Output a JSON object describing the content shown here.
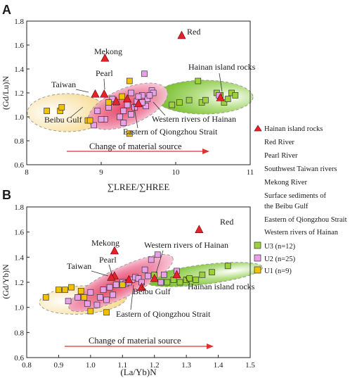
{
  "legend": {
    "items": [
      "Hainan island rocks",
      "Red River",
      "Pearl River",
      "Southwest Taiwan rivers",
      "Mekong River",
      "Surface sediments of",
      "the Beibu Gulf",
      "Eastern of Qiongzhou Strait",
      "Western rivers of Hainan",
      "U3 (n=12)",
      "U2 (n=25)",
      "U1 (n=9)"
    ]
  },
  "colors": {
    "u1": "#f2c100",
    "u2": "#e8a0e8",
    "u3": "#9bd13c",
    "triangle": "#e8202a",
    "arrow": "#e03030"
  },
  "chart_data": [
    {
      "type": "scatter",
      "panel": "A",
      "xlabel": "∑LREE/∑HREE",
      "ylabel": "(Gd/Lu)N",
      "xlim": [
        8,
        11
      ],
      "ylim": [
        0.6,
        1.8
      ],
      "xticks": [
        "8",
        "9",
        "10",
        "11"
      ],
      "yticks": [
        "0.6",
        "0.8",
        "1.0",
        "1.2",
        "1.4",
        "1.6",
        "1.8"
      ],
      "arrow_label": "Change of material source",
      "point_labels": [
        "Red",
        "Mekong",
        "Pearl",
        "Taiwan",
        "Hainan island rocks",
        "Western rivers of Hainan",
        "Beibu Gulf",
        "Eastern of Qiongzhou Strait"
      ],
      "triangles": [
        [
          10.08,
          1.68
        ],
        [
          9.05,
          1.49
        ],
        [
          9.04,
          1.19
        ],
        [
          8.92,
          1.19
        ],
        [
          10.6,
          1.16
        ],
        [
          9.5,
          1.11
        ],
        [
          9.2,
          1.13
        ],
        [
          9.35,
          1.15
        ]
      ],
      "series": [
        {
          "name": "U3 (n=12)",
          "points": [
            [
              10.05,
              1.12
            ],
            [
              10.18,
              1.14
            ],
            [
              10.3,
              1.3
            ],
            [
              10.35,
              1.12
            ],
            [
              10.4,
              1.14
            ],
            [
              10.55,
              1.2
            ],
            [
              10.65,
              1.12
            ],
            [
              10.7,
              1.15
            ],
            [
              10.75,
              1.2
            ],
            [
              10.8,
              1.18
            ],
            [
              10.6,
              1.18
            ],
            [
              9.95,
              1.1
            ]
          ]
        },
        {
          "name": "U2 (n=25)",
          "points": [
            [
              9.58,
              1.36
            ],
            [
              9.68,
              1.22
            ],
            [
              9.62,
              1.15
            ],
            [
              9.55,
              1.18
            ],
            [
              9.48,
              1.13
            ],
            [
              9.45,
              1.08
            ],
            [
              9.4,
              1.2
            ],
            [
              9.35,
              1.1
            ],
            [
              9.3,
              1.05
            ],
            [
              9.25,
              1.0
            ],
            [
              9.2,
              1.12
            ],
            [
              9.15,
              1.15
            ],
            [
              9.1,
              1.08
            ],
            [
              9.05,
              0.98
            ],
            [
              9.0,
              0.98
            ],
            [
              8.95,
              1.05
            ],
            [
              8.9,
              0.93
            ],
            [
              9.3,
              0.95
            ],
            [
              9.4,
              1.02
            ],
            [
              9.5,
              1.17
            ],
            [
              9.6,
              1.09
            ],
            [
              9.7,
              1.2
            ],
            [
              9.55,
              1.12
            ],
            [
              9.65,
              1.18
            ],
            [
              10.58,
              1.18
            ]
          ]
        },
        {
          "name": "U1 (n=9)",
          "points": [
            [
              8.27,
              1.05
            ],
            [
              8.45,
              1.05
            ],
            [
              8.47,
              1.08
            ],
            [
              8.82,
              0.97
            ],
            [
              8.85,
              0.97
            ],
            [
              9.1,
              1.12
            ],
            [
              9.28,
              1.17
            ],
            [
              9.38,
              1.3
            ],
            [
              9.38,
              0.86
            ]
          ]
        }
      ]
    },
    {
      "type": "scatter",
      "panel": "B",
      "xlabel": "(La/Yb)N",
      "ylabel": "(Gd/Yb)N",
      "xlim": [
        0.8,
        1.5
      ],
      "ylim": [
        0.6,
        1.8
      ],
      "xticks": [
        "0.8",
        "0.9",
        "1.0",
        "1.1",
        "1.2",
        "1.3",
        "1.4",
        "1.5"
      ],
      "yticks": [
        "0.6",
        "0.8",
        "1.0",
        "1.2",
        "1.4",
        "1.6",
        "1.8"
      ],
      "arrow_label": "Change of material source",
      "point_labels": [
        "Red",
        "Mekong",
        "Pearl",
        "Taiwan",
        "Western rivers of Hainan",
        "Hainan island rocks",
        "Beibu Gulf",
        "Eastern of Qiongzhou Strait"
      ],
      "triangles": [
        [
          1.34,
          1.62
        ],
        [
          1.075,
          1.45
        ],
        [
          1.075,
          1.25
        ],
        [
          1.065,
          1.24
        ],
        [
          1.2,
          1.23
        ],
        [
          1.27,
          1.26
        ],
        [
          1.16,
          1.16
        ],
        [
          1.12,
          1.22
        ]
      ],
      "series": [
        {
          "name": "U3 (n=12)",
          "points": [
            [
              1.22,
              1.2
            ],
            [
              1.24,
              1.2
            ],
            [
              1.26,
              1.22
            ],
            [
              1.28,
              1.2
            ],
            [
              1.3,
              1.22
            ],
            [
              1.31,
              1.23
            ],
            [
              1.35,
              1.26
            ],
            [
              1.38,
              1.28
            ],
            [
              1.43,
              1.33
            ],
            [
              1.33,
              1.22
            ],
            [
              1.2,
              1.26
            ],
            [
              1.1,
              1.2
            ]
          ]
        },
        {
          "name": "U2 (n=25)",
          "points": [
            [
              0.93,
              1.05
            ],
            [
              0.96,
              1.08
            ],
            [
              0.99,
              1.03
            ],
            [
              1.02,
              1.02
            ],
            [
              1.03,
              1.08
            ],
            [
              1.05,
              1.06
            ],
            [
              1.07,
              1.1
            ],
            [
              1.08,
              1.18
            ],
            [
              1.1,
              1.2
            ],
            [
              1.11,
              1.19
            ],
            [
              1.12,
              1.2
            ],
            [
              1.13,
              1.22
            ],
            [
              1.14,
              1.24
            ],
            [
              1.15,
              1.23
            ],
            [
              1.16,
              1.2
            ],
            [
              1.17,
              1.3
            ],
            [
              1.19,
              1.38
            ],
            [
              1.21,
              1.42
            ],
            [
              1.22,
              1.2
            ],
            [
              1.23,
              1.26
            ],
            [
              1.27,
              1.29
            ],
            [
              1.0,
              1.12
            ],
            [
              1.04,
              1.14
            ],
            [
              1.06,
              1.16
            ],
            [
              1.18,
              1.25
            ]
          ]
        },
        {
          "name": "U1 (n=9)",
          "points": [
            [
              0.86,
              1.08
            ],
            [
              0.9,
              1.14
            ],
            [
              0.92,
              1.14
            ],
            [
              0.94,
              1.16
            ],
            [
              0.97,
              1.13
            ],
            [
              0.98,
              1.08
            ],
            [
              1.0,
              0.97
            ],
            [
              1.05,
              0.96
            ],
            [
              1.1,
              1.18
            ]
          ]
        }
      ]
    }
  ]
}
